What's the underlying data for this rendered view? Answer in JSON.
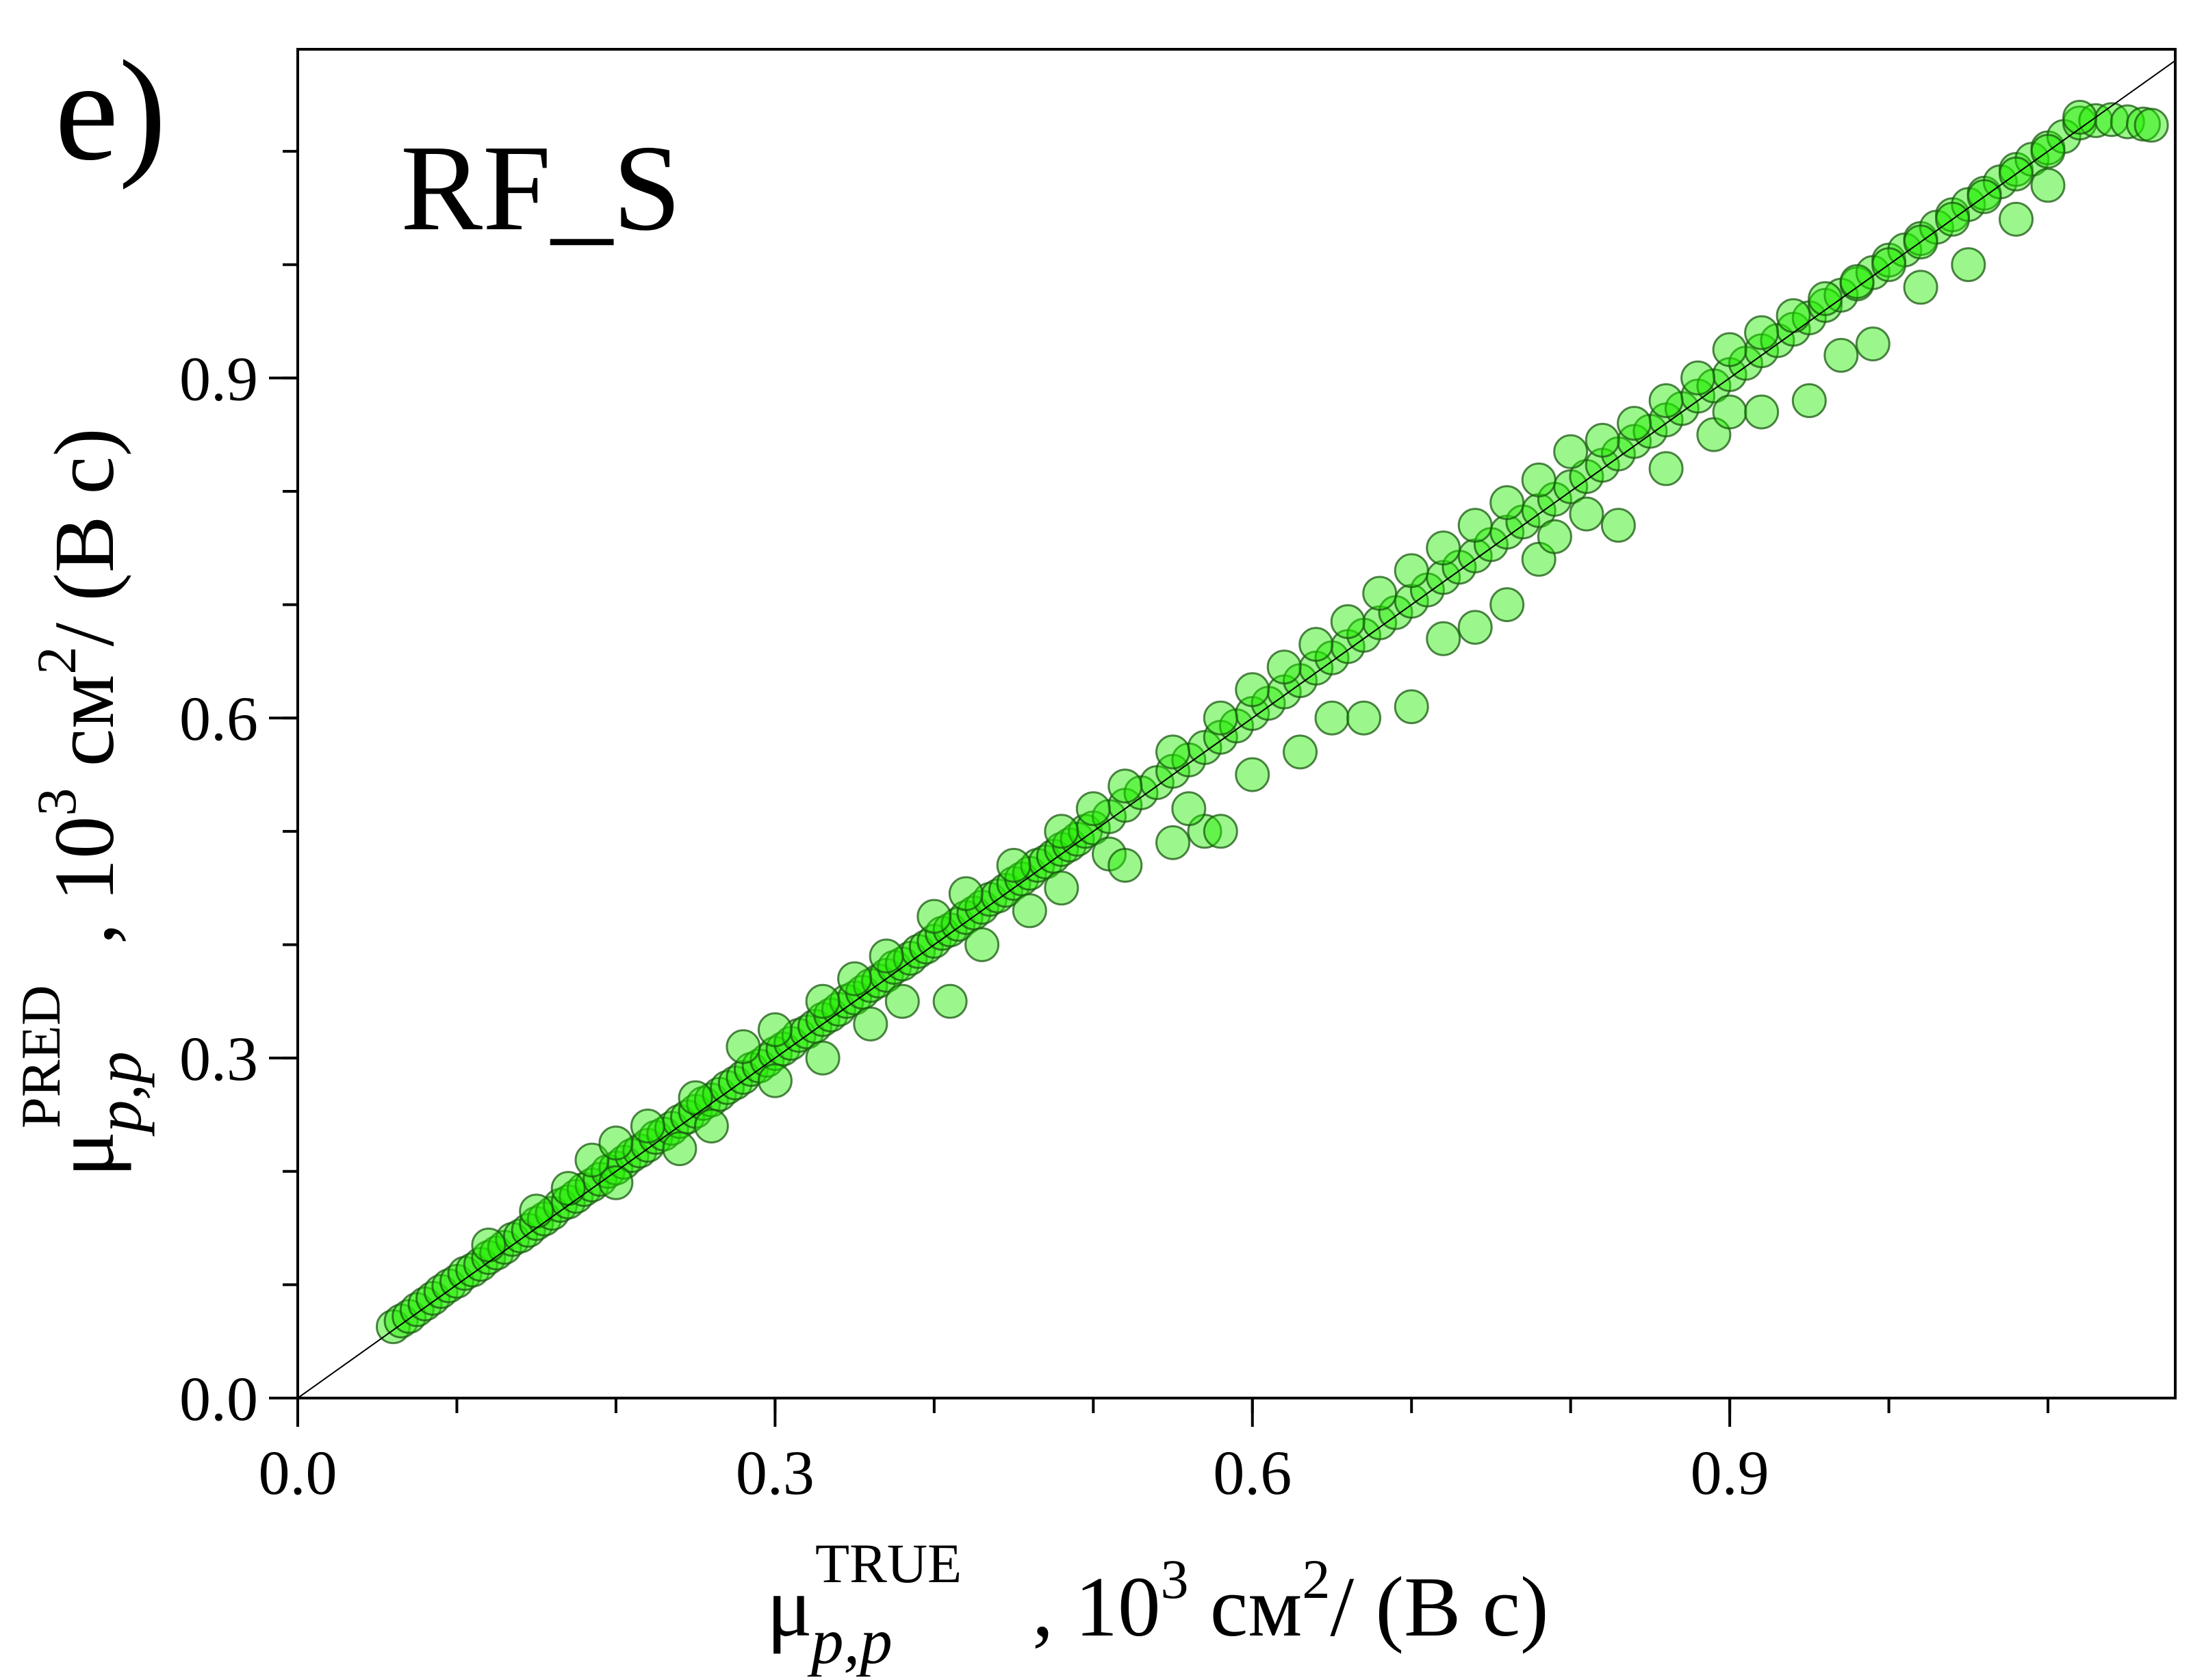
{
  "panel_label": "e)",
  "chart_data": {
    "type": "scatter",
    "title": "RF_S",
    "xlabel": {
      "symbol": "μ",
      "superscript": "TRUE",
      "subscript": "p,p",
      "units_prefix": ",  10",
      "units_exp": "3",
      "units_mid": " см",
      "units_exp2": "2",
      "units_tail": "/ (В с)"
    },
    "ylabel": {
      "symbol": "μ",
      "superscript": "PRED",
      "subscript": "p,p",
      "units_prefix": ",  10",
      "units_exp": "3",
      "units_mid": " см",
      "units_exp2": "2",
      "units_tail": "/ (В с)"
    },
    "xlim": [
      0.0,
      1.18
    ],
    "ylim": [
      0.0,
      1.19
    ],
    "xticks": [
      "0.0",
      "0.3",
      "0.6",
      "0.9"
    ],
    "yticks": [
      "0.0",
      "0.3",
      "0.6",
      "0.9"
    ],
    "xtick_values": [
      0.0,
      0.3,
      0.6,
      0.9
    ],
    "ytick_values": [
      0.0,
      0.3,
      0.6,
      0.9
    ],
    "minor_step": 0.1,
    "reference_line": "y = x",
    "grid": false,
    "marker_fill": "#22ee00",
    "marker_edge": "#1a5a10",
    "line_color": "#000000",
    "series": [
      {
        "points": [
          [
            0.06,
            0.063
          ],
          [
            0.065,
            0.068
          ],
          [
            0.07,
            0.072
          ],
          [
            0.075,
            0.078
          ],
          [
            0.08,
            0.083
          ],
          [
            0.085,
            0.088
          ],
          [
            0.09,
            0.094
          ],
          [
            0.095,
            0.099
          ],
          [
            0.1,
            0.103
          ],
          [
            0.105,
            0.11
          ],
          [
            0.11,
            0.113
          ],
          [
            0.115,
            0.118
          ],
          [
            0.12,
            0.124
          ],
          [
            0.125,
            0.128
          ],
          [
            0.13,
            0.133
          ],
          [
            0.135,
            0.14
          ],
          [
            0.14,
            0.143
          ],
          [
            0.145,
            0.148
          ],
          [
            0.15,
            0.154
          ],
          [
            0.155,
            0.158
          ],
          [
            0.16,
            0.163
          ],
          [
            0.165,
            0.17
          ],
          [
            0.17,
            0.173
          ],
          [
            0.175,
            0.178
          ],
          [
            0.18,
            0.184
          ],
          [
            0.185,
            0.188
          ],
          [
            0.19,
            0.193
          ],
          [
            0.195,
            0.2
          ],
          [
            0.2,
            0.203
          ],
          [
            0.205,
            0.208
          ],
          [
            0.21,
            0.214
          ],
          [
            0.215,
            0.218
          ],
          [
            0.22,
            0.223
          ],
          [
            0.225,
            0.23
          ],
          [
            0.23,
            0.233
          ],
          [
            0.235,
            0.238
          ],
          [
            0.24,
            0.244
          ],
          [
            0.245,
            0.248
          ],
          [
            0.25,
            0.253
          ],
          [
            0.255,
            0.26
          ],
          [
            0.26,
            0.263
          ],
          [
            0.265,
            0.268
          ],
          [
            0.27,
            0.274
          ],
          [
            0.275,
            0.278
          ],
          [
            0.28,
            0.283
          ],
          [
            0.285,
            0.29
          ],
          [
            0.29,
            0.293
          ],
          [
            0.295,
            0.298
          ],
          [
            0.3,
            0.304
          ],
          [
            0.305,
            0.308
          ],
          [
            0.31,
            0.313
          ],
          [
            0.315,
            0.32
          ],
          [
            0.32,
            0.323
          ],
          [
            0.325,
            0.328
          ],
          [
            0.33,
            0.334
          ],
          [
            0.335,
            0.338
          ],
          [
            0.34,
            0.343
          ],
          [
            0.345,
            0.35
          ],
          [
            0.35,
            0.353
          ],
          [
            0.355,
            0.358
          ],
          [
            0.36,
            0.364
          ],
          [
            0.365,
            0.368
          ],
          [
            0.37,
            0.373
          ],
          [
            0.375,
            0.38
          ],
          [
            0.38,
            0.383
          ],
          [
            0.385,
            0.388
          ],
          [
            0.39,
            0.394
          ],
          [
            0.395,
            0.398
          ],
          [
            0.4,
            0.403
          ],
          [
            0.405,
            0.41
          ],
          [
            0.41,
            0.413
          ],
          [
            0.415,
            0.418
          ],
          [
            0.42,
            0.424
          ],
          [
            0.425,
            0.428
          ],
          [
            0.43,
            0.433
          ],
          [
            0.435,
            0.44
          ],
          [
            0.44,
            0.443
          ],
          [
            0.445,
            0.448
          ],
          [
            0.45,
            0.454
          ],
          [
            0.455,
            0.458
          ],
          [
            0.46,
            0.463
          ],
          [
            0.465,
            0.47
          ],
          [
            0.47,
            0.473
          ],
          [
            0.475,
            0.478
          ],
          [
            0.48,
            0.484
          ],
          [
            0.485,
            0.488
          ],
          [
            0.49,
            0.493
          ],
          [
            0.495,
            0.5
          ],
          [
            0.5,
            0.503
          ],
          [
            0.51,
            0.513
          ],
          [
            0.52,
            0.523
          ],
          [
            0.53,
            0.534
          ],
          [
            0.54,
            0.543
          ],
          [
            0.55,
            0.553
          ],
          [
            0.56,
            0.563
          ],
          [
            0.57,
            0.574
          ],
          [
            0.58,
            0.583
          ],
          [
            0.59,
            0.593
          ],
          [
            0.6,
            0.604
          ],
          [
            0.61,
            0.613
          ],
          [
            0.62,
            0.623
          ],
          [
            0.63,
            0.633
          ],
          [
            0.64,
            0.644
          ],
          [
            0.65,
            0.653
          ],
          [
            0.66,
            0.663
          ],
          [
            0.67,
            0.673
          ],
          [
            0.68,
            0.684
          ],
          [
            0.69,
            0.693
          ],
          [
            0.7,
            0.703
          ],
          [
            0.71,
            0.713
          ],
          [
            0.72,
            0.724
          ],
          [
            0.73,
            0.733
          ],
          [
            0.74,
            0.743
          ],
          [
            0.75,
            0.753
          ],
          [
            0.76,
            0.764
          ],
          [
            0.77,
            0.773
          ],
          [
            0.78,
            0.783
          ],
          [
            0.79,
            0.793
          ],
          [
            0.8,
            0.804
          ],
          [
            0.81,
            0.813
          ],
          [
            0.82,
            0.823
          ],
          [
            0.83,
            0.833
          ],
          [
            0.84,
            0.844
          ],
          [
            0.85,
            0.853
          ],
          [
            0.86,
            0.863
          ],
          [
            0.87,
            0.873
          ],
          [
            0.88,
            0.884
          ],
          [
            0.89,
            0.893
          ],
          [
            0.9,
            0.903
          ],
          [
            0.91,
            0.913
          ],
          [
            0.92,
            0.924
          ],
          [
            0.93,
            0.933
          ],
          [
            0.94,
            0.943
          ],
          [
            0.95,
            0.953
          ],
          [
            0.96,
            0.964
          ],
          [
            0.97,
            0.973
          ],
          [
            0.98,
            0.983
          ],
          [
            0.99,
            0.993
          ],
          [
            1.0,
            1.004
          ],
          [
            1.01,
            1.013
          ],
          [
            1.02,
            1.023
          ],
          [
            1.03,
            1.033
          ],
          [
            1.04,
            1.044
          ],
          [
            1.05,
            1.053
          ],
          [
            1.06,
            1.063
          ],
          [
            1.07,
            1.073
          ],
          [
            1.08,
            1.084
          ],
          [
            1.09,
            1.093
          ],
          [
            1.1,
            1.103
          ],
          [
            1.11,
            1.113
          ],
          [
            1.12,
            1.125
          ],
          [
            1.13,
            1.127
          ],
          [
            1.14,
            1.128
          ],
          [
            1.15,
            1.126
          ],
          [
            1.16,
            1.124
          ],
          [
            1.165,
            1.123
          ],
          [
            0.12,
            0.135
          ],
          [
            0.15,
            0.165
          ],
          [
            0.17,
            0.185
          ],
          [
            0.185,
            0.21
          ],
          [
            0.2,
            0.225
          ],
          [
            0.22,
            0.24
          ],
          [
            0.25,
            0.265
          ],
          [
            0.28,
            0.31
          ],
          [
            0.3,
            0.325
          ],
          [
            0.33,
            0.35
          ],
          [
            0.35,
            0.37
          ],
          [
            0.37,
            0.39
          ],
          [
            0.4,
            0.425
          ],
          [
            0.42,
            0.445
          ],
          [
            0.45,
            0.47
          ],
          [
            0.48,
            0.5
          ],
          [
            0.5,
            0.52
          ],
          [
            0.52,
            0.54
          ],
          [
            0.55,
            0.57
          ],
          [
            0.58,
            0.6
          ],
          [
            0.6,
            0.625
          ],
          [
            0.62,
            0.645
          ],
          [
            0.64,
            0.665
          ],
          [
            0.66,
            0.685
          ],
          [
            0.68,
            0.71
          ],
          [
            0.7,
            0.73
          ],
          [
            0.72,
            0.75
          ],
          [
            0.74,
            0.77
          ],
          [
            0.76,
            0.79
          ],
          [
            0.78,
            0.81
          ],
          [
            0.8,
            0.835
          ],
          [
            0.82,
            0.845
          ],
          [
            0.84,
            0.86
          ],
          [
            0.86,
            0.88
          ],
          [
            0.88,
            0.9
          ],
          [
            0.9,
            0.925
          ],
          [
            0.92,
            0.94
          ],
          [
            0.94,
            0.955
          ],
          [
            0.96,
            0.97
          ],
          [
            0.98,
            0.985
          ],
          [
            1.0,
            1.0
          ],
          [
            1.02,
            1.02
          ],
          [
            1.04,
            1.04
          ],
          [
            1.06,
            1.06
          ],
          [
            1.08,
            1.08
          ],
          [
            1.1,
            1.1
          ],
          [
            1.12,
            1.13
          ],
          [
            0.2,
            0.19
          ],
          [
            0.24,
            0.22
          ],
          [
            0.26,
            0.24
          ],
          [
            0.3,
            0.28
          ],
          [
            0.33,
            0.3
          ],
          [
            0.36,
            0.33
          ],
          [
            0.38,
            0.35
          ],
          [
            0.41,
            0.35
          ],
          [
            0.43,
            0.4
          ],
          [
            0.46,
            0.43
          ],
          [
            0.48,
            0.45
          ],
          [
            0.51,
            0.48
          ],
          [
            0.52,
            0.47
          ],
          [
            0.55,
            0.49
          ],
          [
            0.57,
            0.5
          ],
          [
            0.58,
            0.5
          ],
          [
            0.56,
            0.52
          ],
          [
            0.6,
            0.55
          ],
          [
            0.63,
            0.57
          ],
          [
            0.65,
            0.6
          ],
          [
            0.67,
            0.6
          ],
          [
            0.7,
            0.61
          ],
          [
            0.72,
            0.67
          ],
          [
            0.74,
            0.68
          ],
          [
            0.76,
            0.7
          ],
          [
            0.78,
            0.74
          ],
          [
            0.79,
            0.76
          ],
          [
            0.81,
            0.78
          ],
          [
            0.83,
            0.77
          ],
          [
            0.86,
            0.82
          ],
          [
            0.89,
            0.85
          ],
          [
            0.9,
            0.87
          ],
          [
            0.92,
            0.87
          ],
          [
            0.95,
            0.88
          ],
          [
            0.97,
            0.92
          ],
          [
            0.99,
            0.93
          ],
          [
            1.02,
            0.98
          ],
          [
            1.05,
            1.0
          ],
          [
            1.08,
            1.04
          ],
          [
            1.1,
            1.07
          ]
        ]
      }
    ]
  }
}
